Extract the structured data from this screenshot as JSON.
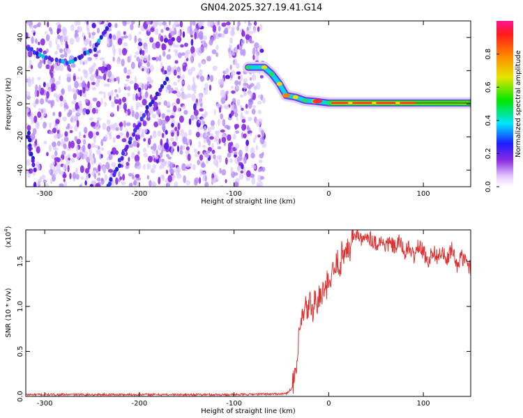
{
  "title": "GN04.2025.327.19.41.G14",
  "chart_data": [
    {
      "type": "heatmap",
      "panel": "spectrogram",
      "xlabel": "Height of straight line (km)",
      "ylabel": "Frequency (Hz)",
      "xlim": [
        -320,
        150
      ],
      "ylim": [
        -50,
        50
      ],
      "xticks": [
        -300,
        -200,
        -100,
        0,
        100
      ],
      "xtick_labels": [
        "-300",
        "-200",
        "-100",
        "0",
        "100"
      ],
      "yticks": [
        -40,
        -20,
        0,
        20,
        40
      ],
      "ytick_labels": [
        "-40",
        "-20",
        "0",
        "20",
        "40"
      ],
      "noise_region_x": [
        -320,
        -68
      ],
      "signal_track": {
        "x": [
          -85,
          -68,
          -60,
          -52,
          -45,
          -35,
          -25,
          -15,
          0,
          20,
          50,
          80,
          100,
          150
        ],
        "freq": [
          22,
          22,
          18,
          12,
          5,
          4,
          2,
          1.5,
          0.5,
          0.5,
          0.5,
          0.5,
          0.5,
          0.5
        ]
      },
      "colorbar": {
        "label": "Normalized spectral amplitude",
        "range": [
          0,
          1
        ],
        "ticks": [
          0.0,
          0.2,
          0.4,
          0.6,
          0.8
        ],
        "tick_labels": [
          "0.0",
          "0.2",
          "0.4",
          "0.6",
          "0.8"
        ]
      }
    },
    {
      "type": "line",
      "panel": "snr",
      "xlabel": "Height of straight line (km)",
      "ylabel": "SNR (10 * v/v)",
      "scale_label": "(x10",
      "scale_exp": "4",
      "scale_close": ")",
      "xlim": [
        -320,
        150
      ],
      "ylim": [
        0,
        1.85
      ],
      "xticks": [
        -300,
        -200,
        -100,
        0,
        100
      ],
      "xtick_labels": [
        "-300",
        "-200",
        "-100",
        "0",
        "100"
      ],
      "yticks": [
        0.0,
        0.5,
        1.0,
        1.5
      ],
      "ytick_labels": [
        "0.0",
        "0.5",
        "1.0",
        "1.5"
      ],
      "series": [
        {
          "name": "SNR",
          "color": "#e03030",
          "x": [
            -320,
            -100,
            -45,
            -38,
            -34,
            -32,
            -30,
            -28,
            -26,
            -24,
            -22,
            -20,
            -18,
            -16,
            -14,
            -12,
            -10,
            -8,
            -6,
            -4,
            -2,
            0,
            2,
            4,
            6,
            8,
            10,
            12,
            14,
            16,
            18,
            20,
            22,
            24,
            26,
            28,
            30,
            35,
            40,
            45,
            50,
            55,
            60,
            65,
            70,
            75,
            80,
            85,
            90,
            95,
            100,
            105,
            110,
            115,
            120,
            125,
            130,
            135,
            140,
            145,
            150
          ],
          "y": [
            0.02,
            0.02,
            0.03,
            0.1,
            0.3,
            0.55,
            0.75,
            0.9,
            0.85,
            1.0,
            0.95,
            1.05,
            0.95,
            1.0,
            1.1,
            0.95,
            1.15,
            1.05,
            1.2,
            1.1,
            1.25,
            1.2,
            1.3,
            1.35,
            1.4,
            1.45,
            1.55,
            1.4,
            1.6,
            1.55,
            1.7,
            1.65,
            1.6,
            1.7,
            1.8,
            1.75,
            1.85,
            1.7,
            1.8,
            1.75,
            1.7,
            1.72,
            1.68,
            1.7,
            1.65,
            1.72,
            1.6,
            1.65,
            1.55,
            1.68,
            1.6,
            1.5,
            1.62,
            1.55,
            1.6,
            1.5,
            1.65,
            1.45,
            1.55,
            1.5,
            1.42
          ]
        }
      ]
    }
  ]
}
